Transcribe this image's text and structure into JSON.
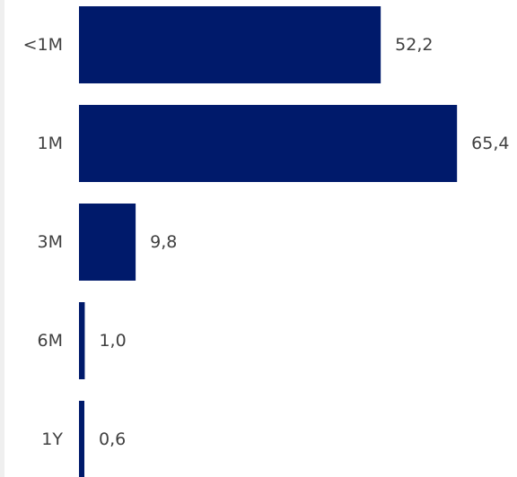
{
  "chart_data": {
    "type": "bar",
    "orientation": "horizontal",
    "categories": [
      "<1M",
      "1M",
      "3M",
      "6M",
      "1Y"
    ],
    "values": [
      52.2,
      65.4,
      9.8,
      1.0,
      0.6
    ],
    "value_labels": [
      "52,2",
      "65,4",
      "9,8",
      "1,0",
      "0,6"
    ],
    "bar_color": "#001a6b",
    "label_color": "#404040",
    "grid": false,
    "legend": "none"
  }
}
